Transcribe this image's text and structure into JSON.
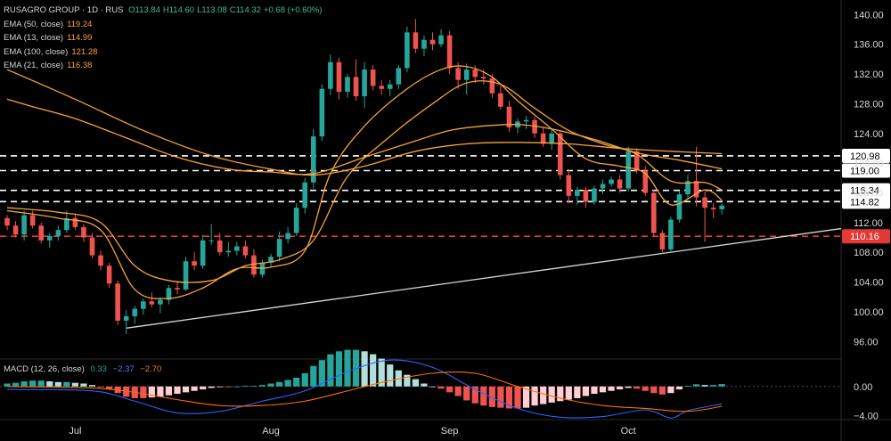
{
  "header": {
    "symbol": "RUSAGRO GROUP",
    "interval": "1D",
    "exchange": "RUS",
    "ohlc": {
      "open": "O113.84",
      "high": "H114.60",
      "low": "L113.08",
      "close": "C114.32",
      "change": "+0.68 (+0.60%)"
    }
  },
  "legend": [
    {
      "label": "EMA (50, close)",
      "value": "119.24",
      "color": "#f7a33c"
    },
    {
      "label": "EMA (13, close)",
      "value": "114.99",
      "color": "#f7a33c"
    },
    {
      "label": "EMA (100, close)",
      "value": "121.28",
      "color": "#f7a33c"
    },
    {
      "label": "EMA (21, close)",
      "value": "116.38",
      "color": "#f7a33c"
    }
  ],
  "macd": {
    "label": "MACD (12, 26, close)",
    "hist": "0.33",
    "macd": "−2.37",
    "signal": "−2.70",
    "axis_ticks": [
      0.0,
      -4.0
    ]
  },
  "colors": {
    "up": "#26a69a",
    "up_light": "#b2dfdb",
    "down": "#ef5350",
    "down_light": "#ffcdd2",
    "ema": "#f7a33c",
    "macd_line": "#2962ff",
    "signal_line": "#ff6d00",
    "level": "#ffffff",
    "support_level": "#e53935",
    "trendline": "#d9d9d9"
  },
  "chart_data": {
    "type": "candlestick",
    "ylim": [
      94,
      141
    ],
    "y_ticks": [
      96,
      100,
      104,
      108,
      112,
      116,
      120,
      124,
      128,
      132,
      136,
      140
    ],
    "x_labels": [
      "Jul",
      "Aug",
      "Sep",
      "Oct"
    ],
    "x_label_index": [
      8,
      31,
      52,
      73
    ],
    "levels": [
      {
        "value": 120.98,
        "label": "120.98",
        "color": "white"
      },
      {
        "value": 119.0,
        "label": "119.00",
        "color": "white"
      },
      {
        "value": 116.34,
        "label": "116.34",
        "color": "white"
      },
      {
        "value": 114.82,
        "label": "114.82",
        "color": "white"
      },
      {
        "value": 110.16,
        "label": "110.16",
        "color": "red"
      }
    ],
    "trendline": {
      "from": {
        "index": 14,
        "value": 97.8
      },
      "to_value_at_right_edge": 111.2
    },
    "candles": [
      [
        112.6,
        113.0,
        111.0,
        111.6
      ],
      [
        111.6,
        112.2,
        110.0,
        110.4
      ],
      [
        110.4,
        113.6,
        109.6,
        113.0
      ],
      [
        113.0,
        113.6,
        111.2,
        111.6
      ],
      [
        111.6,
        112.0,
        109.2,
        109.6
      ],
      [
        109.6,
        110.6,
        108.6,
        110.2
      ],
      [
        110.2,
        111.6,
        109.6,
        111.0
      ],
      [
        111.0,
        113.6,
        110.6,
        112.6
      ],
      [
        112.6,
        113.2,
        111.0,
        111.4
      ],
      [
        111.4,
        111.8,
        109.4,
        110.0
      ],
      [
        110.0,
        110.6,
        107.2,
        107.6
      ],
      [
        107.6,
        108.2,
        105.6,
        106.2
      ],
      [
        106.2,
        106.6,
        103.2,
        103.8
      ],
      [
        103.8,
        104.2,
        98.2,
        98.8
      ],
      [
        98.8,
        100.2,
        97.0,
        99.4
      ],
      [
        99.4,
        100.8,
        98.4,
        100.4
      ],
      [
        100.4,
        101.8,
        99.6,
        101.4
      ],
      [
        101.4,
        102.6,
        100.6,
        101.0
      ],
      [
        101.0,
        102.0,
        99.8,
        101.6
      ],
      [
        101.6,
        103.6,
        101.0,
        103.2
      ],
      [
        103.2,
        104.0,
        102.4,
        103.0
      ],
      [
        103.0,
        107.4,
        102.8,
        106.8
      ],
      [
        106.8,
        108.0,
        105.6,
        106.2
      ],
      [
        106.2,
        110.4,
        105.8,
        109.6
      ],
      [
        109.6,
        111.8,
        109.0,
        109.6
      ],
      [
        109.6,
        110.6,
        107.6,
        108.0
      ],
      [
        108.0,
        109.4,
        107.4,
        108.2
      ],
      [
        108.2,
        109.4,
        107.6,
        108.8
      ],
      [
        108.8,
        109.6,
        107.2,
        107.6
      ],
      [
        107.6,
        108.4,
        104.6,
        105.0
      ],
      [
        105.0,
        107.0,
        104.6,
        106.6
      ],
      [
        106.6,
        107.8,
        106.0,
        107.4
      ],
      [
        107.4,
        110.8,
        106.8,
        109.8
      ],
      [
        109.8,
        111.4,
        109.2,
        110.6
      ],
      [
        110.6,
        114.6,
        110.2,
        114.0
      ],
      [
        114.0,
        118.0,
        113.2,
        117.4
      ],
      [
        117.4,
        124.6,
        116.6,
        123.6
      ],
      [
        123.6,
        130.6,
        123.0,
        130.0
      ],
      [
        130.0,
        134.6,
        129.2,
        133.6
      ],
      [
        133.6,
        134.2,
        128.6,
        129.6
      ],
      [
        129.6,
        132.0,
        128.8,
        131.6
      ],
      [
        131.6,
        134.0,
        128.4,
        129.0
      ],
      [
        129.0,
        133.6,
        127.4,
        132.6
      ],
      [
        132.6,
        133.2,
        129.8,
        130.4
      ],
      [
        130.4,
        131.2,
        129.2,
        130.0
      ],
      [
        130.0,
        131.2,
        129.0,
        130.6
      ],
      [
        130.6,
        133.2,
        130.0,
        132.8
      ],
      [
        132.8,
        138.4,
        132.2,
        137.6
      ],
      [
        137.6,
        139.4,
        134.8,
        135.4
      ],
      [
        135.4,
        137.2,
        134.4,
        136.6
      ],
      [
        136.6,
        137.6,
        135.2,
        136.0
      ],
      [
        136.0,
        138.0,
        135.6,
        137.2
      ],
      [
        137.2,
        137.8,
        132.0,
        132.8
      ],
      [
        132.8,
        133.6,
        130.0,
        131.2
      ],
      [
        131.2,
        133.4,
        129.2,
        132.6
      ],
      [
        132.6,
        133.2,
        130.8,
        131.6
      ],
      [
        131.6,
        132.6,
        130.6,
        131.4
      ],
      [
        131.4,
        132.0,
        128.8,
        129.4
      ],
      [
        129.4,
        130.4,
        127.2,
        127.6
      ],
      [
        127.6,
        128.4,
        124.2,
        124.8
      ],
      [
        124.8,
        126.0,
        124.0,
        125.6
      ],
      [
        125.6,
        126.4,
        124.6,
        125.8
      ],
      [
        125.8,
        126.2,
        123.4,
        124.0
      ],
      [
        124.0,
        124.8,
        122.2,
        122.6
      ],
      [
        122.6,
        124.6,
        121.8,
        124.0
      ],
      [
        124.0,
        124.4,
        117.8,
        118.4
      ],
      [
        118.4,
        119.2,
        114.6,
        115.6
      ],
      [
        115.6,
        116.8,
        114.4,
        116.4
      ],
      [
        116.4,
        116.8,
        114.0,
        114.8
      ],
      [
        114.8,
        117.0,
        114.4,
        116.6
      ],
      [
        116.6,
        117.8,
        115.8,
        117.2
      ],
      [
        117.2,
        118.2,
        116.8,
        117.8
      ],
      [
        117.8,
        118.4,
        116.0,
        116.6
      ],
      [
        116.6,
        122.2,
        116.2,
        121.6
      ],
      [
        121.6,
        122.0,
        118.6,
        119.0
      ],
      [
        119.0,
        119.6,
        115.6,
        116.0
      ],
      [
        116.0,
        116.4,
        110.2,
        110.6
      ],
      [
        110.6,
        111.0,
        108.0,
        108.4
      ],
      [
        108.4,
        112.8,
        108.0,
        112.4
      ],
      [
        112.4,
        116.2,
        112.0,
        115.8
      ],
      [
        115.8,
        118.4,
        115.2,
        117.6
      ],
      [
        117.6,
        122.2,
        114.2,
        115.4
      ],
      [
        115.4,
        116.2,
        109.4,
        114.0
      ],
      [
        114.0,
        114.6,
        112.6,
        113.8
      ],
      [
        113.8,
        114.6,
        113.1,
        114.3
      ]
    ],
    "ema": {
      "ema50": [
        [
          0,
          128.6
        ],
        [
          3,
          127.6
        ],
        [
          8,
          126.0
        ],
        [
          14,
          123.4
        ],
        [
          20,
          120.8
        ],
        [
          26,
          119.2
        ],
        [
          31,
          118.8
        ],
        [
          36,
          118.6
        ],
        [
          42,
          120.8
        ],
        [
          48,
          123.0
        ],
        [
          52,
          124.4
        ],
        [
          56,
          125.0
        ],
        [
          60,
          125.2
        ],
        [
          64,
          124.6
        ],
        [
          69,
          123.2
        ],
        [
          74,
          121.4
        ],
        [
          79,
          120.4
        ],
        [
          84,
          119.24
        ]
      ],
      "ema100": [
        [
          0,
          132.6
        ],
        [
          8,
          128.6
        ],
        [
          16,
          124.4
        ],
        [
          24,
          121.0
        ],
        [
          31,
          119.2
        ],
        [
          36,
          118.4
        ],
        [
          42,
          119.6
        ],
        [
          48,
          121.6
        ],
        [
          54,
          122.6
        ],
        [
          60,
          122.8
        ],
        [
          66,
          122.6
        ],
        [
          72,
          122.0
        ],
        [
          78,
          121.6
        ],
        [
          84,
          121.28
        ]
      ],
      "ema21": [
        [
          0,
          114.0
        ],
        [
          6,
          113.4
        ],
        [
          11,
          112.0
        ],
        [
          15,
          106.2
        ],
        [
          19,
          104.2
        ],
        [
          24,
          104.2
        ],
        [
          28,
          106.2
        ],
        [
          32,
          107.0
        ],
        [
          36,
          109.6
        ],
        [
          40,
          118.2
        ],
        [
          45,
          123.6
        ],
        [
          50,
          128.0
        ],
        [
          54,
          130.8
        ],
        [
          58,
          130.6
        ],
        [
          62,
          127.4
        ],
        [
          66,
          124.4
        ],
        [
          70,
          122.6
        ],
        [
          74,
          121.2
        ],
        [
          78,
          117.6
        ],
        [
          82,
          117.4
        ],
        [
          84,
          116.38
        ]
      ],
      "ema13": [
        [
          0,
          113.6
        ],
        [
          6,
          112.6
        ],
        [
          11,
          111.0
        ],
        [
          15,
          103.0
        ],
        [
          19,
          101.8
        ],
        [
          23,
          103.2
        ],
        [
          27,
          105.8
        ],
        [
          31,
          106.0
        ],
        [
          35,
          108.2
        ],
        [
          38,
          118.6
        ],
        [
          42,
          125.0
        ],
        [
          47,
          130.0
        ],
        [
          51,
          132.6
        ],
        [
          54,
          133.0
        ],
        [
          57,
          131.6
        ],
        [
          60,
          128.4
        ],
        [
          64,
          124.6
        ],
        [
          68,
          120.6
        ],
        [
          72,
          119.6
        ],
        [
          75,
          118.6
        ],
        [
          78,
          114.4
        ],
        [
          82,
          116.4
        ],
        [
          84,
          114.99
        ]
      ]
    },
    "macd_hist": [
      0.4,
      0.5,
      0.7,
      0.8,
      0.8,
      0.7,
      0.6,
      0.6,
      0.5,
      0.4,
      0.2,
      -0.1,
      -0.4,
      -0.9,
      -1.4,
      -1.6,
      -1.6,
      -1.5,
      -1.4,
      -1.2,
      -1.0,
      -0.8,
      -0.6,
      -0.4,
      -0.2,
      -0.1,
      -0.1,
      0.0,
      0.1,
      0.1,
      0.2,
      0.4,
      0.6,
      0.9,
      1.2,
      1.8,
      2.8,
      3.6,
      4.4,
      4.8,
      5.0,
      5.0,
      4.8,
      4.4,
      3.8,
      3.0,
      2.2,
      1.6,
      1.0,
      0.4,
      0.0,
      -0.3,
      -0.8,
      -1.3,
      -1.9,
      -2.3,
      -2.6,
      -2.8,
      -2.9,
      -3.0,
      -3.0,
      -2.9,
      -2.6,
      -2.4,
      -2.2,
      -2.0,
      -1.8,
      -1.6,
      -1.3,
      -1.0,
      -0.8,
      -0.6,
      -0.4,
      -0.2,
      -0.3,
      -0.6,
      -0.9,
      -1.1,
      -0.9,
      -0.4,
      0.1,
      0.3,
      0.2,
      0.2,
      0.33
    ],
    "macd_ylim": [
      -4.4,
      3.5
    ],
    "macd_ticks": [
      0.0,
      -4.0
    ],
    "macd_line": [
      [
        0,
        -0.4
      ],
      [
        10,
        -0.6
      ],
      [
        15,
        -2.0
      ],
      [
        20,
        -3.6
      ],
      [
        25,
        -3.4
      ],
      [
        30,
        -2.0
      ],
      [
        35,
        -0.6
      ],
      [
        40,
        2.0
      ],
      [
        45,
        3.6
      ],
      [
        50,
        2.6
      ],
      [
        55,
        -0.4
      ],
      [
        60,
        -3.0
      ],
      [
        65,
        -4.2
      ],
      [
        70,
        -4.1
      ],
      [
        75,
        -3.2
      ],
      [
        78,
        -4.3
      ],
      [
        80,
        -3.3
      ],
      [
        84,
        -2.37
      ]
    ],
    "signal_line": [
      [
        0,
        0.0
      ],
      [
        10,
        -0.2
      ],
      [
        15,
        -0.8
      ],
      [
        20,
        -1.8
      ],
      [
        25,
        -2.6
      ],
      [
        30,
        -2.6
      ],
      [
        35,
        -2.0
      ],
      [
        40,
        -0.6
      ],
      [
        45,
        0.8
      ],
      [
        50,
        1.8
      ],
      [
        55,
        1.8
      ],
      [
        60,
        0.0
      ],
      [
        65,
        -1.6
      ],
      [
        70,
        -2.6
      ],
      [
        75,
        -3.0
      ],
      [
        80,
        -3.4
      ],
      [
        84,
        -2.7
      ]
    ]
  }
}
